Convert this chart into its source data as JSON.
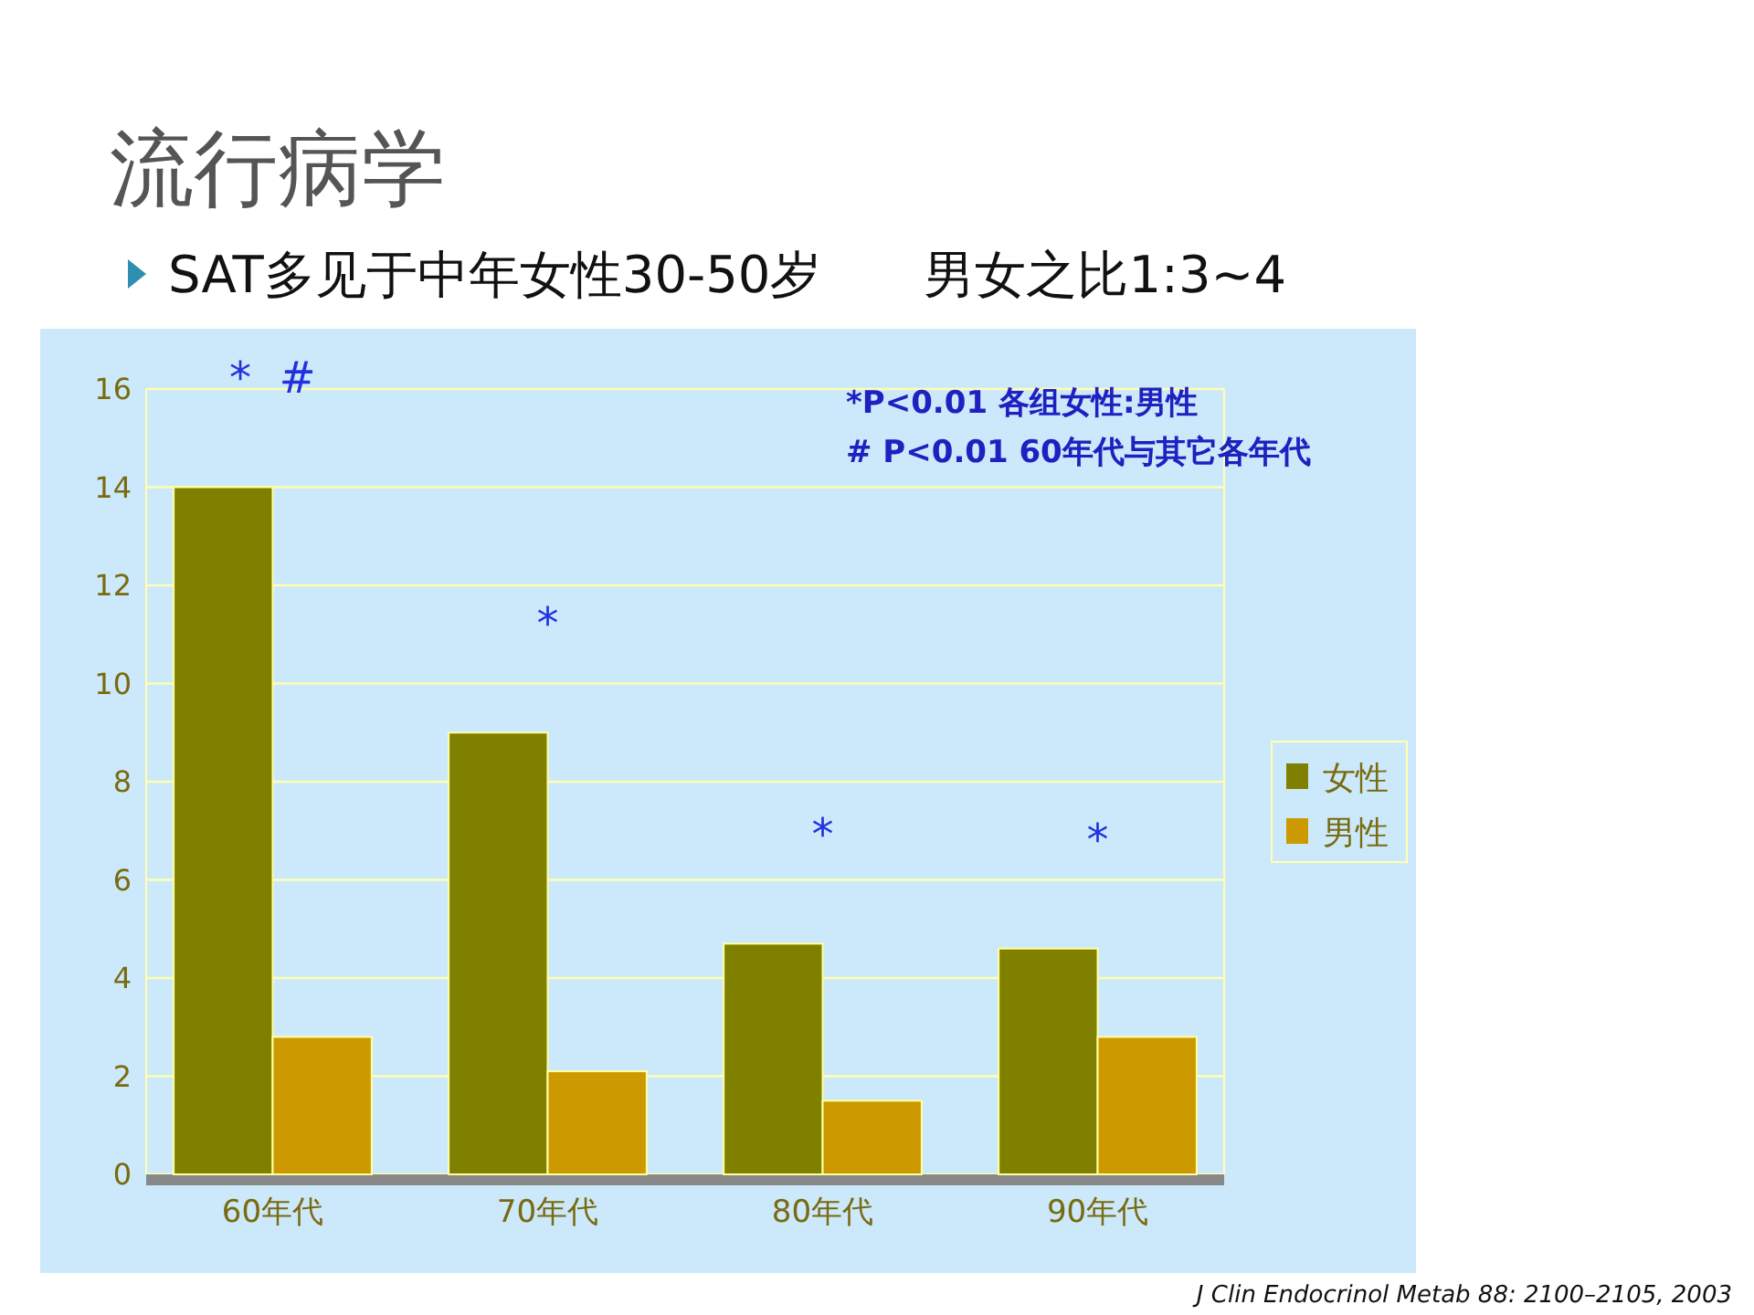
{
  "chart_data": {
    "type": "bar",
    "title": "流行病学",
    "subtitle": "SAT多见于中年女性30-50岁　　男女之比1:3~4",
    "categories": [
      "60年代",
      "70年代",
      "80年代",
      "90年代"
    ],
    "series": [
      {
        "name": "女性",
        "color": "#808000",
        "values": [
          14,
          9,
          4.7,
          4.6
        ]
      },
      {
        "name": "男性",
        "color": "#cc9900",
        "values": [
          2.8,
          2.1,
          1.5,
          2.8
        ]
      }
    ],
    "ylim": [
      0,
      16
    ],
    "yticks": [
      0,
      2,
      4,
      6,
      8,
      10,
      12,
      14,
      16
    ],
    "grid": "y",
    "legend": "right",
    "annotations": [
      "*  #",
      "*",
      "*",
      "*",
      "*P<0.01 各组女性:男性",
      "# P<0.01 60年代与其它各年代",
      "J Clin Endocrinol Metab 88: 2100–2105, 2003"
    ]
  }
}
